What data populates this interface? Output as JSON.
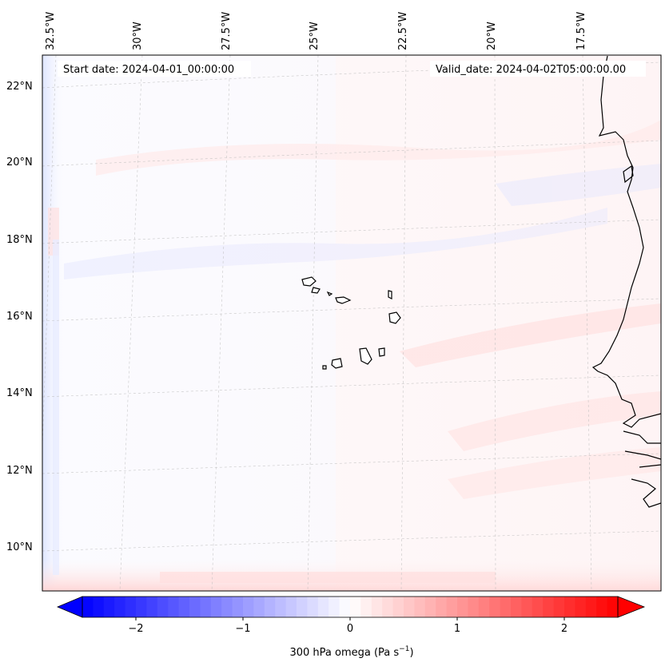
{
  "map": {
    "start_date_label": "Start date: 2024-04-01_00:00:00",
    "valid_date_label": "Valid_date: 2024-04-02T05:00:00.00",
    "lon_labels": [
      "32.5°W",
      "30°W",
      "27.5°W",
      "25°W",
      "22.5°W",
      "20°W",
      "17.5°W"
    ],
    "lat_labels": [
      "22°N",
      "20°N",
      "18°N",
      "16°N",
      "14°N",
      "12°N",
      "10°N"
    ],
    "gridlines": true,
    "coastline_color": "#000000"
  },
  "colorbar": {
    "label_main": "300 hPa omega (Pa s",
    "label_exp": "−1",
    "label_end": ")",
    "ticks": [
      "−2",
      "−1",
      "0",
      "1",
      "2"
    ],
    "tick_values": [
      -2,
      -1,
      0,
      1,
      2
    ],
    "range": [
      -2.5,
      2.5
    ],
    "colormap": "bwr",
    "color_min": "#0000ff",
    "color_mid": "#ffffff",
    "color_max": "#ff0000",
    "extend": "both"
  }
}
